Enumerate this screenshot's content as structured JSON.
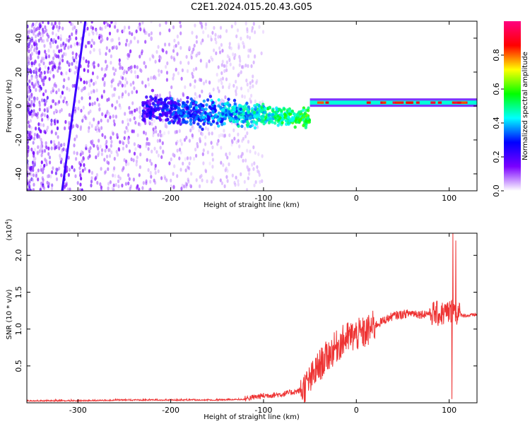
{
  "title": "C2E1.2024.015.20.43.G05",
  "chart_data": [
    {
      "type": "heatmap",
      "xlabel": "Height of straight line (km)",
      "ylabel": "Frequency (Hz)",
      "xlim": [
        -355,
        130
      ],
      "ylim": [
        -50,
        50
      ],
      "xticks": [
        -300,
        -200,
        -100,
        0,
        100
      ],
      "yticks": [
        -40,
        -20,
        0,
        20,
        40
      ],
      "grid": false,
      "colorbar": {
        "label": "Normalized spectral amplitude",
        "range": [
          0,
          1
        ],
        "ticks": [
          0.0,
          0.2,
          0.4,
          0.6,
          0.8
        ],
        "colormap": [
          "#ffffff",
          "#7b00ff",
          "#0000ff",
          "#00ffff",
          "#00ff00",
          "#ffff00",
          "#ff0000",
          "#ff0080"
        ]
      },
      "features": {
        "noise_region_km": [
          -355,
          -140
        ],
        "dispersed_signal_km": [
          -230,
          -50
        ],
        "tonal_line_frequency_hz": 2,
        "tonal_line_km": [
          -50,
          130
        ],
        "diagonal_line": {
          "from": [
            -317,
            -50
          ],
          "to": [
            -292,
            50
          ]
        }
      }
    },
    {
      "type": "line",
      "xlabel": "Height of straight line (km)",
      "ylabel": "SNR (10 * v/v)",
      "yscale_label": "(x10",
      "yscale_exponent": "4",
      "yscale_suffix": ")",
      "xlim": [
        -355,
        130
      ],
      "ylim": [
        0,
        2.3
      ],
      "xticks": [
        -300,
        -200,
        -100,
        0,
        100
      ],
      "yticks": [
        "0.5",
        "1.0",
        "1.5",
        "2.0"
      ],
      "color": "#ee3333",
      "series": [
        {
          "x": [
            -355,
            -300,
            -250,
            -200,
            -150,
            -120,
            -100,
            -80,
            -60,
            -50,
            -40,
            -30,
            -20,
            -10,
            0,
            10,
            20,
            30,
            40,
            50,
            60,
            70,
            80,
            90,
            100,
            105,
            110,
            120,
            130
          ],
          "y": [
            0.02,
            0.02,
            0.03,
            0.03,
            0.03,
            0.04,
            0.08,
            0.1,
            0.15,
            0.3,
            0.5,
            0.65,
            0.78,
            0.88,
            0.92,
            0.95,
            1.05,
            1.12,
            1.18,
            1.2,
            1.22,
            1.2,
            1.22,
            1.2,
            1.23,
            1.25,
            1.2,
            1.18,
            1.2
          ],
          "spikes": [
            {
              "x": 104,
              "y": 2.3
            },
            {
              "x": 107,
              "y": 2.2
            },
            {
              "x": 103,
              "y": 0.05
            }
          ]
        }
      ]
    }
  ]
}
